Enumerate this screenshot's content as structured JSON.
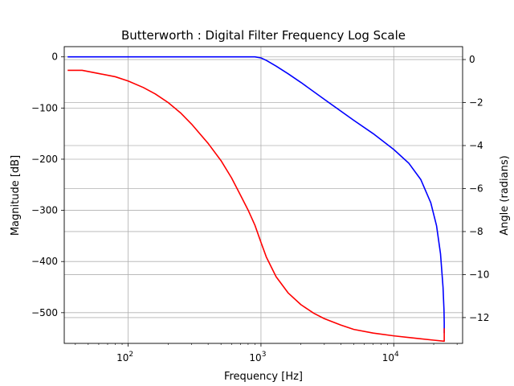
{
  "chart_data": {
    "type": "line",
    "title": "Butterworth : Digital Filter Frequency Log Scale",
    "xlabel": "Frequency [Hz]",
    "x_scale": "log",
    "xlim": [
      33,
      33000
    ],
    "x_ticks": [
      100,
      1000,
      10000
    ],
    "x_tick_labels": [
      {
        "base": "10",
        "exp": "2"
      },
      {
        "base": "10",
        "exp": "3"
      },
      {
        "base": "10",
        "exp": "4"
      }
    ],
    "grid": true,
    "axes": {
      "left": {
        "label": "Magnitude [dB]",
        "color": "#0000ff",
        "ylim": [
          -560,
          20
        ],
        "ticks": [
          0,
          -100,
          -200,
          -300,
          -400,
          -500
        ],
        "tick_labels": [
          "0",
          "−100",
          "−200",
          "−300",
          "−400",
          "−500"
        ]
      },
      "right": {
        "label": "Angle (radians)",
        "color": "#ff0000",
        "ylim": [
          -13.2,
          0.6
        ],
        "ticks": [
          0,
          -2,
          -4,
          -6,
          -8,
          -10,
          -12
        ],
        "tick_labels": [
          "0",
          "−2",
          "−4",
          "−6",
          "−8",
          "−10",
          "−12"
        ]
      }
    },
    "series": [
      {
        "axis": "left",
        "color": "#0000ff",
        "x": [
          35,
          100,
          500,
          900,
          1000,
          1100,
          1300,
          1600,
          2000,
          3000,
          5000,
          7000,
          10000,
          13000,
          16000,
          19000,
          21000,
          22500,
          23500,
          23900,
          24000,
          24000
        ],
        "y": [
          0,
          0,
          0,
          0,
          -2,
          -7,
          -18,
          -33,
          -50,
          -83,
          -124,
          -150,
          -181,
          -208,
          -240,
          -285,
          -330,
          -385,
          -450,
          -495,
          -520,
          -540
        ]
      },
      {
        "axis": "right",
        "color": "#ff0000",
        "x": [
          35,
          45,
          60,
          80,
          100,
          130,
          160,
          200,
          250,
          300,
          400,
          500,
          600,
          700,
          800,
          900,
          1000,
          1100,
          1300,
          1600,
          2000,
          2500,
          3000,
          4000,
          5000,
          7000,
          10000,
          15000,
          20000,
          24000,
          24000
        ],
        "y": [
          -0.5,
          -0.5,
          -0.65,
          -0.8,
          -1.0,
          -1.3,
          -1.6,
          -2.0,
          -2.5,
          -3.0,
          -3.9,
          -4.7,
          -5.5,
          -6.3,
          -7.0,
          -7.7,
          -8.5,
          -9.2,
          -10.1,
          -10.85,
          -11.4,
          -11.8,
          -12.05,
          -12.35,
          -12.55,
          -12.72,
          -12.85,
          -12.97,
          -13.05,
          -13.1,
          -12.5
        ]
      }
    ]
  }
}
